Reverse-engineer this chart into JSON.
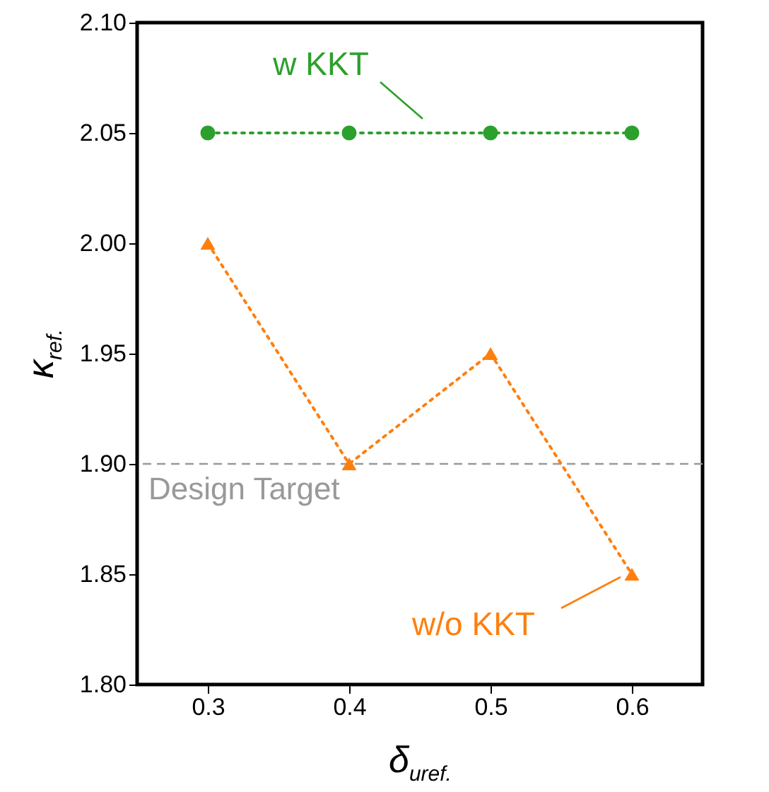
{
  "chart_data": {
    "type": "line",
    "xlabel": "δ$_{uref.}$",
    "ylabel": "κ$_{ref.}$",
    "x": [
      0.3,
      0.4,
      0.5,
      0.6
    ],
    "series": [
      {
        "name": "w KKT",
        "color": "#2ca02c",
        "marker": "circle",
        "values": [
          2.05,
          2.05,
          2.05,
          2.05
        ]
      },
      {
        "name": "w/o KKT",
        "color": "#ff7f0e",
        "marker": "triangle",
        "values": [
          2.0,
          1.9,
          1.95,
          1.85
        ]
      }
    ],
    "line_style": "dotted",
    "xlim": [
      0.25,
      0.65
    ],
    "xticks": [
      0.3,
      0.4,
      0.5,
      0.6
    ],
    "ylim": [
      1.8,
      2.1
    ],
    "yticks": [
      {
        "value": 1.8,
        "label": "1.80"
      },
      1.85,
      {
        "value": 1.9,
        "label": "1.90"
      },
      1.95,
      {
        "value": 2.0,
        "label": "2.00"
      },
      2.05,
      {
        "value": 2.1,
        "label": "2.10"
      }
    ],
    "ref_lines": [
      {
        "axis": "y",
        "value": 1.9,
        "label": "Design Target",
        "color": "#999999",
        "line_style": "dashed"
      }
    ],
    "grid": false
  }
}
